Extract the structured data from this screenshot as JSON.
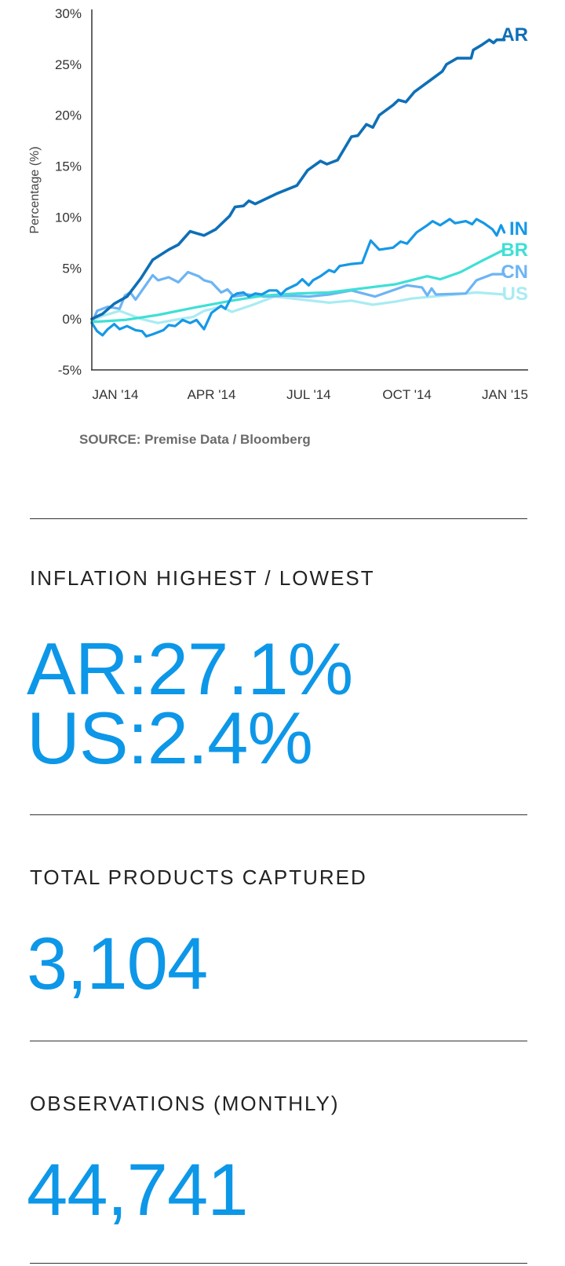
{
  "chart_data": {
    "type": "line",
    "ylabel": "Percentage (%)",
    "ylim": [
      -5,
      30
    ],
    "y_ticks": [
      "30%",
      "25%",
      "20%",
      "15%",
      "10%",
      "5%",
      "0%",
      "-5%"
    ],
    "y_tick_values": [
      30,
      25,
      20,
      15,
      10,
      5,
      0,
      -5
    ],
    "x_ticks": [
      "JAN '14",
      "APR '14",
      "JUL '14",
      "OCT '14",
      "JAN '15"
    ],
    "x_tick_dates": [
      "2014-01-01",
      "2014-04-01",
      "2014-07-01",
      "2014-10-01",
      "2015-01-01"
    ],
    "xlim": [
      "2013-12-10",
      "2015-01-15"
    ],
    "grid": false,
    "legend": "labels at line ends (right)",
    "series": [
      {
        "name": "AR",
        "color": "#0e6fb7",
        "points": [
          [
            "2013-12-10",
            0
          ],
          [
            "2013-12-20",
            0.5
          ],
          [
            "2013-12-31",
            1.5
          ],
          [
            "2014-01-12",
            2.2
          ],
          [
            "2014-01-25",
            4
          ],
          [
            "2014-02-05",
            5.8
          ],
          [
            "2014-02-20",
            6.8
          ],
          [
            "2014-03-01",
            7.3
          ],
          [
            "2014-03-12",
            8.6
          ],
          [
            "2014-03-25",
            8.2
          ],
          [
            "2014-04-05",
            8.8
          ],
          [
            "2014-04-18",
            10.1
          ],
          [
            "2014-04-23",
            11
          ],
          [
            "2014-05-01",
            11.1
          ],
          [
            "2014-05-06",
            11.6
          ],
          [
            "2014-05-12",
            11.3
          ],
          [
            "2014-06-01",
            12.3
          ],
          [
            "2014-06-20",
            13.1
          ],
          [
            "2014-06-30",
            14.6
          ],
          [
            "2014-07-12",
            15.5
          ],
          [
            "2014-07-18",
            15.2
          ],
          [
            "2014-07-28",
            15.6
          ],
          [
            "2014-08-10",
            17.9
          ],
          [
            "2014-08-16",
            18.0
          ],
          [
            "2014-08-24",
            19.1
          ],
          [
            "2014-08-30",
            18.8
          ],
          [
            "2014-09-05",
            20
          ],
          [
            "2014-09-18",
            21
          ],
          [
            "2014-09-23",
            21.5
          ],
          [
            "2014-09-30",
            21.3
          ],
          [
            "2014-10-08",
            22.3
          ],
          [
            "2014-10-25",
            23.6
          ],
          [
            "2014-11-03",
            24.3
          ],
          [
            "2014-11-07",
            25
          ],
          [
            "2014-11-17",
            25.6
          ],
          [
            "2014-11-30",
            25.6
          ],
          [
            "2014-12-02",
            26.4
          ],
          [
            "2014-12-10",
            26.9
          ],
          [
            "2014-12-17",
            27.4
          ],
          [
            "2014-12-21",
            27.1
          ],
          [
            "2014-12-24",
            27.4
          ],
          [
            "2014-12-31",
            27.4
          ]
        ]
      },
      {
        "name": "IN",
        "color": "#1598e6",
        "points": [
          [
            "2013-12-10",
            -0.4
          ],
          [
            "2013-12-15",
            -1.2
          ],
          [
            "2013-12-20",
            -1.6
          ],
          [
            "2013-12-25",
            -1
          ],
          [
            "2013-12-31",
            -0.5
          ],
          [
            "2014-01-05",
            -1
          ],
          [
            "2014-01-12",
            -0.7
          ],
          [
            "2014-01-20",
            -1.1
          ],
          [
            "2014-01-26",
            -1.2
          ],
          [
            "2014-01-30",
            -1.7
          ],
          [
            "2014-02-05",
            -1.5
          ],
          [
            "2014-02-15",
            -1.1
          ],
          [
            "2014-02-20",
            -0.6
          ],
          [
            "2014-02-26",
            -0.7
          ],
          [
            "2014-03-05",
            -0.1
          ],
          [
            "2014-03-12",
            -0.4
          ],
          [
            "2014-03-18",
            -0.1
          ],
          [
            "2014-03-25",
            -1
          ],
          [
            "2014-04-01",
            0.6
          ],
          [
            "2014-04-10",
            1.3
          ],
          [
            "2014-04-14",
            1.0
          ],
          [
            "2014-04-20",
            2.2
          ],
          [
            "2014-04-25",
            2.5
          ],
          [
            "2014-05-01",
            2.6
          ],
          [
            "2014-05-06",
            2.2
          ],
          [
            "2014-05-12",
            2.5
          ],
          [
            "2014-05-18",
            2.4
          ],
          [
            "2014-05-25",
            2.8
          ],
          [
            "2014-06-01",
            2.8
          ],
          [
            "2014-06-05",
            2.4
          ],
          [
            "2014-06-10",
            2.9
          ],
          [
            "2014-06-20",
            3.4
          ],
          [
            "2014-06-25",
            3.9
          ],
          [
            "2014-07-01",
            3.3
          ],
          [
            "2014-07-05",
            3.8
          ],
          [
            "2014-07-12",
            4.2
          ],
          [
            "2014-07-20",
            4.8
          ],
          [
            "2014-07-25",
            4.6
          ],
          [
            "2014-07-30",
            5.2
          ],
          [
            "2014-08-10",
            5.4
          ],
          [
            "2014-08-20",
            5.5
          ],
          [
            "2014-08-28",
            7.7
          ],
          [
            "2014-09-05",
            6.8
          ],
          [
            "2014-09-18",
            7.0
          ],
          [
            "2014-09-25",
            7.6
          ],
          [
            "2014-10-01",
            7.4
          ],
          [
            "2014-10-10",
            8.5
          ],
          [
            "2014-10-20",
            9.2
          ],
          [
            "2014-10-25",
            9.6
          ],
          [
            "2014-11-01",
            9.2
          ],
          [
            "2014-11-10",
            9.8
          ],
          [
            "2014-11-15",
            9.4
          ],
          [
            "2014-11-25",
            9.6
          ],
          [
            "2014-12-01",
            9.3
          ],
          [
            "2014-12-05",
            9.8
          ],
          [
            "2014-12-12",
            9.4
          ],
          [
            "2014-12-20",
            8.8
          ],
          [
            "2014-12-24",
            8.2
          ],
          [
            "2014-12-28",
            9.2
          ],
          [
            "2014-12-31",
            8.5
          ]
        ]
      },
      {
        "name": "BR",
        "color": "#3ee0d5",
        "points": [
          [
            "2013-12-10",
            -0.3
          ],
          [
            "2014-01-10",
            -0.1
          ],
          [
            "2014-02-10",
            0.4
          ],
          [
            "2014-03-15",
            1.1
          ],
          [
            "2014-04-20",
            1.8
          ],
          [
            "2014-05-20",
            2.3
          ],
          [
            "2014-06-20",
            2.5
          ],
          [
            "2014-07-20",
            2.6
          ],
          [
            "2014-08-20",
            3.0
          ],
          [
            "2014-09-20",
            3.4
          ],
          [
            "2014-10-20",
            4.2
          ],
          [
            "2014-11-01",
            3.9
          ],
          [
            "2014-11-20",
            4.6
          ],
          [
            "2014-12-10",
            5.7
          ],
          [
            "2014-12-31",
            6.8
          ]
        ]
      },
      {
        "name": "CN",
        "color": "#6cb4f5",
        "points": [
          [
            "2013-12-10",
            -0.4
          ],
          [
            "2013-12-15",
            0.8
          ],
          [
            "2013-12-25",
            1.2
          ],
          [
            "2014-01-05",
            1.0
          ],
          [
            "2014-01-10",
            2.3
          ],
          [
            "2014-01-15",
            2.6
          ],
          [
            "2014-01-20",
            1.9
          ],
          [
            "2014-01-28",
            3.1
          ],
          [
            "2014-02-05",
            4.3
          ],
          [
            "2014-02-10",
            3.8
          ],
          [
            "2014-02-20",
            4.1
          ],
          [
            "2014-03-01",
            3.6
          ],
          [
            "2014-03-10",
            4.6
          ],
          [
            "2014-03-20",
            4.2
          ],
          [
            "2014-03-25",
            3.8
          ],
          [
            "2014-04-01",
            3.6
          ],
          [
            "2014-04-10",
            2.6
          ],
          [
            "2014-04-16",
            2.9
          ],
          [
            "2014-04-22",
            2.2
          ],
          [
            "2014-05-05",
            2.4
          ],
          [
            "2014-05-20",
            2.2
          ],
          [
            "2014-06-10",
            2.3
          ],
          [
            "2014-07-01",
            2.2
          ],
          [
            "2014-07-20",
            2.4
          ],
          [
            "2014-08-10",
            2.8
          ],
          [
            "2014-09-01",
            2.2
          ],
          [
            "2014-10-01",
            3.3
          ],
          [
            "2014-10-15",
            3.1
          ],
          [
            "2014-10-20",
            2.3
          ],
          [
            "2014-10-24",
            3.0
          ],
          [
            "2014-10-28",
            2.4
          ],
          [
            "2014-11-25",
            2.5
          ],
          [
            "2014-12-05",
            3.8
          ],
          [
            "2014-12-20",
            4.4
          ],
          [
            "2014-12-31",
            4.4
          ]
        ]
      },
      {
        "name": "US",
        "color": "#a8ecf2",
        "points": [
          [
            "2013-12-10",
            -0.2
          ],
          [
            "2013-12-20",
            0.3
          ],
          [
            "2014-01-05",
            0.8
          ],
          [
            "2014-01-25",
            0.0
          ],
          [
            "2014-02-10",
            -0.4
          ],
          [
            "2014-02-25",
            -0.1
          ],
          [
            "2014-03-15",
            0.2
          ],
          [
            "2014-03-25",
            0.8
          ],
          [
            "2014-04-10",
            1.2
          ],
          [
            "2014-04-20",
            0.7
          ],
          [
            "2014-05-10",
            1.4
          ],
          [
            "2014-05-30",
            2.2
          ],
          [
            "2014-06-25",
            1.9
          ],
          [
            "2014-07-20",
            1.6
          ],
          [
            "2014-08-10",
            1.8
          ],
          [
            "2014-08-30",
            1.4
          ],
          [
            "2014-09-20",
            1.7
          ],
          [
            "2014-10-05",
            2.0
          ],
          [
            "2014-10-25",
            2.2
          ],
          [
            "2014-11-15",
            2.4
          ],
          [
            "2014-12-05",
            2.6
          ],
          [
            "2014-12-31",
            2.4
          ]
        ]
      }
    ]
  },
  "source": "SOURCE: Premise Data / Bloomberg",
  "stats": {
    "inflation_label": "INFLATION HIGHEST /  LOWEST",
    "highest": "AR:27.1%",
    "lowest": "US:2.4%",
    "products_label": "TOTAL PRODUCTS CAPTURED",
    "products_value": "3,104",
    "observations_label": "OBSERVATIONS (MONTHLY)",
    "observations_value": "44,741"
  }
}
